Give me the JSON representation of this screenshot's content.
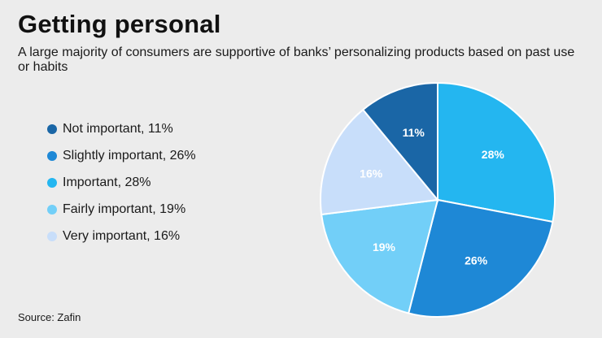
{
  "title": "Getting personal",
  "subtitle": "A large majority of consumers are supportive of banks’ personalizing products based on past use or habits",
  "source": "Source: Zafin",
  "chart_data": {
    "type": "pie",
    "legend_position": "left",
    "start_angle_deg": -90,
    "direction": "clockwise",
    "slices": [
      {
        "label": "Important",
        "value": 28,
        "data_label": "28%",
        "legend_text": "Important, 28%",
        "color": "#24b6f0"
      },
      {
        "label": "Slightly important",
        "value": 26,
        "data_label": "26%",
        "legend_text": "Slightly important, 26%",
        "color": "#1e88d6"
      },
      {
        "label": "Fairly important",
        "value": 19,
        "data_label": "19%",
        "legend_text": "Fairly important, 19%",
        "color": "#72cff8"
      },
      {
        "label": "Very important",
        "value": 16,
        "data_label": "16%",
        "legend_text": "Very important, 16%",
        "color": "#c8defa"
      },
      {
        "label": "Not important",
        "value": 11,
        "data_label": "11%",
        "legend_text": "Not important, 11%",
        "color": "#1a66a6"
      }
    ],
    "legend_order": [
      "Not important",
      "Slightly important",
      "Important",
      "Fairly important",
      "Very important"
    ]
  }
}
